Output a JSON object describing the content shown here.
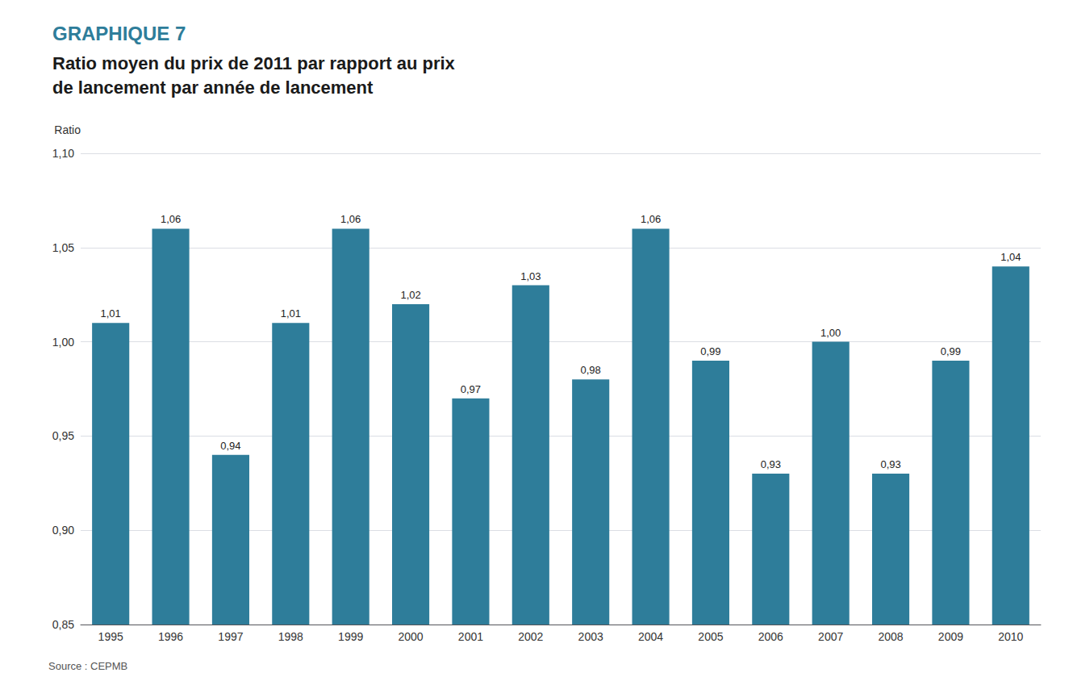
{
  "chart_data": {
    "type": "bar",
    "title": "GRAPHIQUE 7",
    "subtitle": "Ratio moyen du prix de 2011 par rapport au prix\nde lancement par année de lancement",
    "ylabel": "Ratio",
    "annotations": [
      "Source : CEPMB"
    ],
    "categories": [
      "1995",
      "1996",
      "1997",
      "1998",
      "1999",
      "2000",
      "2001",
      "2002",
      "2003",
      "2004",
      "2005",
      "2006",
      "2007",
      "2008",
      "2009",
      "2010"
    ],
    "values": [
      1.01,
      1.06,
      0.94,
      1.01,
      1.06,
      1.02,
      0.97,
      1.03,
      0.98,
      1.06,
      0.99,
      0.93,
      1.0,
      0.93,
      0.99,
      1.04
    ],
    "value_labels": [
      "1,01",
      "1,06",
      "0,94",
      "1,01",
      "1,06",
      "1,02",
      "0,97",
      "1,03",
      "0,98",
      "1,06",
      "0,99",
      "0,93",
      "1,00",
      "0,93",
      "0,99",
      "1,04"
    ],
    "color": "#2E7D9A",
    "ylim": [
      0.85,
      1.1
    ],
    "yticks": [
      {
        "value": 0.85,
        "label": "0,85"
      },
      {
        "value": 0.9,
        "label": "0,90"
      },
      {
        "value": 0.95,
        "label": "0,95"
      },
      {
        "value": 1.0,
        "label": "1,00"
      },
      {
        "value": 1.05,
        "label": "1,05"
      },
      {
        "value": 1.1,
        "label": "1,10"
      }
    ],
    "grid": true,
    "data_labels": true
  }
}
